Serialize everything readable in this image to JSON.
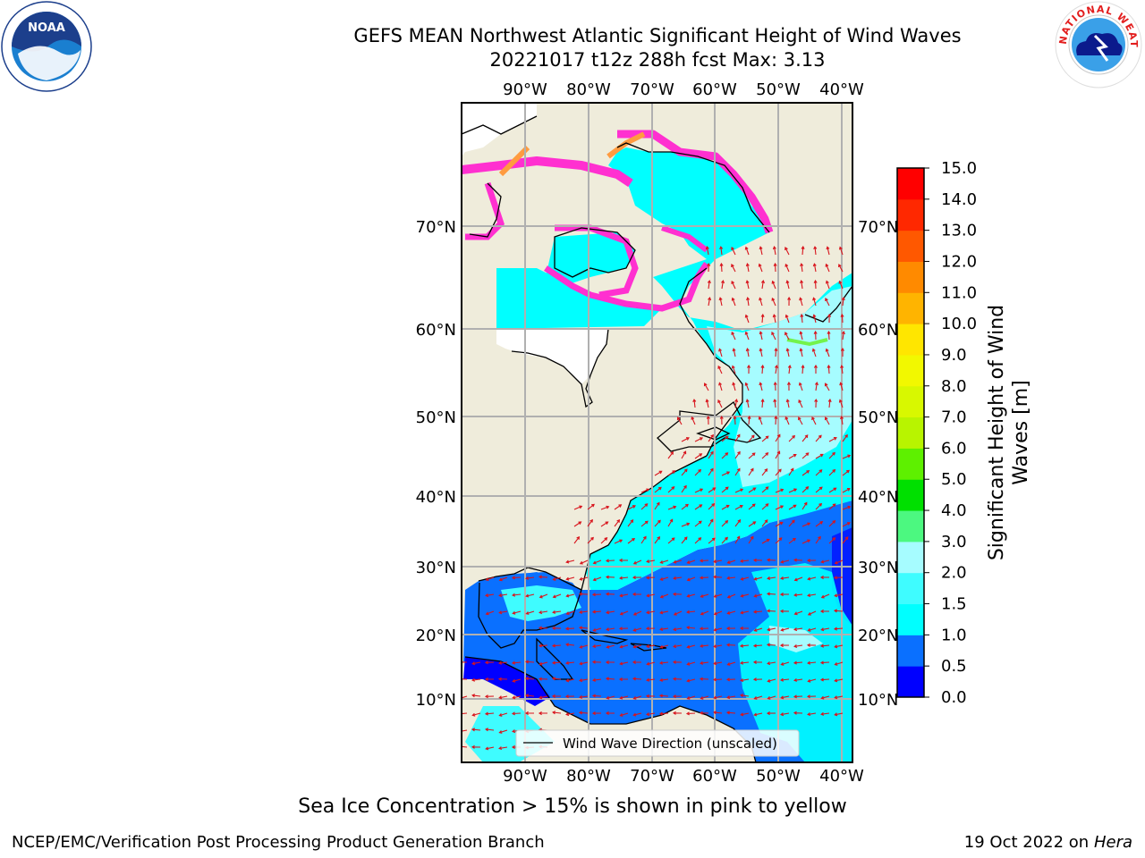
{
  "header": {
    "title_line1": "GEFS MEAN Northwest Atlantic Significant Height of Wind Waves",
    "title_line2": "20221017 t12z 288h fcst   Max: 3.13"
  },
  "logos": {
    "left": {
      "text": "NOAA",
      "ring_text": "NATIONAL OCEANIC AND ATMOSPHERIC ADMINISTRATION · U.S. DEPARTMENT OF COMMERCE"
    },
    "right": {
      "ring_text": "NATIONAL WEATHER SERVICE"
    }
  },
  "map": {
    "lon_labels": [
      "90°W",
      "80°W",
      "70°W",
      "60°W",
      "50°W",
      "40°W"
    ],
    "lat_labels": [
      "70°N",
      "60°N",
      "50°N",
      "40°N",
      "30°N",
      "20°N",
      "10°N"
    ],
    "legend_label": "Wind Wave Direction (unscaled)",
    "colors": {
      "land": "#efecdb",
      "ice_free_water": "#ffffff",
      "arrow": "#d8141c",
      "ice": "#ff30d0"
    }
  },
  "colorbar": {
    "label_line1": "Significant Height of Wind",
    "label_line2": "Waves [m]",
    "ticks": [
      "0.0",
      "0.5",
      "1.0",
      "1.5",
      "2.0",
      "3.0",
      "4.0",
      "5.0",
      "6.0",
      "7.0",
      "8.0",
      "9.0",
      "10.0",
      "11.0",
      "12.0",
      "13.0",
      "14.0",
      "15.0"
    ],
    "colors": [
      "#0000ff",
      "#0a70ff",
      "#00ffff",
      "#3ffcff",
      "#a6fcff",
      "#4cf880",
      "#00e000",
      "#5ef000",
      "#b8f400",
      "#d8f800",
      "#f2f800",
      "#ffe600",
      "#ffb400",
      "#ff8a00",
      "#ff5800",
      "#ff2800",
      "#ff0000"
    ]
  },
  "notes": {
    "ice_note": "Sea Ice Concentration > 15% is shown in pink to yellow",
    "credit": "NCEP/EMC/Verification Post Processing Product Generation Branch",
    "date_prefix": "19 Oct 2022 on ",
    "host": "Hera"
  }
}
